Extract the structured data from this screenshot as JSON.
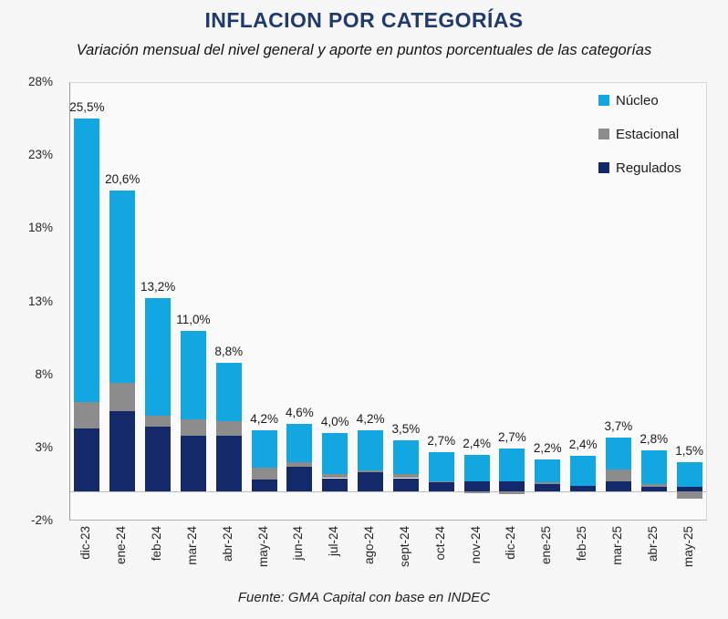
{
  "title": "INFLACION POR CATEGORÍAS",
  "subtitle": "Variación mensual del nivel general y aporte en puntos porcentuales de las categorías",
  "source": "Fuente: GMA Capital con base en INDEC",
  "colors": {
    "background": "#f7f7f7",
    "plot_background": "#fafafa",
    "title_text": "#1f3a6c",
    "label_text": "#1a1a1a",
    "nucleo": "#12a7e0",
    "estacional": "#8c8c8c",
    "regulados": "#13296a"
  },
  "chart_data": {
    "type": "bar",
    "stacked": true,
    "title": "INFLACION POR CATEGORÍAS",
    "subtitle": "Variación mensual del nivel general y aporte en puntos porcentuales de las categorías",
    "categories": [
      "dic-23",
      "ene-24",
      "feb-24",
      "mar-24",
      "abr-24",
      "may-24",
      "jun-24",
      "jul-24",
      "ago-24",
      "sept-24",
      "oct-24",
      "nov-24",
      "dic-24",
      "ene-25",
      "feb-25",
      "mar-25",
      "abr-25",
      "may-25"
    ],
    "series": [
      {
        "name": "Núcleo",
        "color": "#12a7e0",
        "values": [
          19.4,
          13.2,
          8.0,
          6.1,
          4.0,
          2.6,
          2.6,
          2.8,
          2.8,
          2.3,
          2.0,
          1.8,
          2.2,
          1.6,
          2.0,
          2.2,
          2.3,
          1.7
        ]
      },
      {
        "name": "Estacional",
        "color": "#8c8c8c",
        "values": [
          1.8,
          1.9,
          0.8,
          1.1,
          1.0,
          0.8,
          0.3,
          0.3,
          0.1,
          0.3,
          0.1,
          -0.1,
          -0.2,
          0.1,
          0.0,
          0.8,
          0.2,
          -0.5
        ]
      },
      {
        "name": "Regulados",
        "color": "#13296a",
        "values": [
          4.3,
          5.5,
          4.4,
          3.8,
          3.8,
          0.8,
          1.7,
          0.9,
          1.3,
          0.9,
          0.6,
          0.7,
          0.7,
          0.5,
          0.4,
          0.7,
          0.3,
          0.3
        ]
      }
    ],
    "stack_order_bottom_to_top": [
      "Regulados",
      "Estacional",
      "Núcleo"
    ],
    "totals": [
      25.5,
      20.6,
      13.2,
      11.0,
      8.8,
      4.2,
      4.6,
      4.0,
      4.2,
      3.5,
      2.7,
      2.4,
      2.7,
      2.2,
      2.4,
      3.7,
      2.8,
      1.5
    ],
    "total_labels": [
      "25,5%",
      "20,6%",
      "13,2%",
      "11,0%",
      "8,8%",
      "4,2%",
      "4,6%",
      "4,0%",
      "4,2%",
      "3,5%",
      "2,7%",
      "2,4%",
      "2,7%",
      "2,2%",
      "2,4%",
      "3,7%",
      "2,8%",
      "1,5%"
    ],
    "y_ticks": [
      {
        "label": "28%",
        "value": 28
      },
      {
        "label": "23%",
        "value": 23
      },
      {
        "label": "18%",
        "value": 18
      },
      {
        "label": "13%",
        "value": 13
      },
      {
        "label": "8%",
        "value": 8
      },
      {
        "label": "3%",
        "value": 3
      },
      {
        "label": "-2%",
        "value": -2
      }
    ],
    "ylim": [
      -2,
      28
    ],
    "xlabel": "",
    "ylabel": "",
    "grid": false,
    "legend": [
      "Núcleo",
      "Estacional",
      "Regulados"
    ],
    "legend_position": "top-right"
  }
}
